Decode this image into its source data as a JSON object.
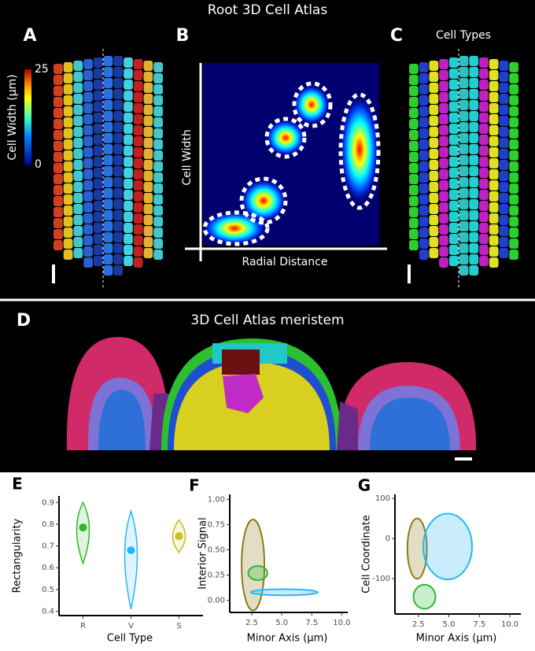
{
  "figure_title": "Root 3D Cell Atlas",
  "panels": {
    "A": {
      "label": "A",
      "colorbar_label": "Cell Width (µm)",
      "colorbar_ticks": [
        0,
        25
      ]
    },
    "B": {
      "label": "B",
      "x_label": "Radial Distance",
      "y_label": "Cell Width"
    },
    "C": {
      "label": "C",
      "title": "Cell Types"
    },
    "D": {
      "label": "D",
      "title": "3D Cell Atlas meristem"
    },
    "E": {
      "label": "E"
    },
    "F": {
      "label": "F"
    },
    "G": {
      "label": "G"
    }
  },
  "chart_data": [
    {
      "type": "violin",
      "x_label": "Cell Type",
      "y_label": "Rectangularity",
      "categories": [
        "R",
        "V",
        "S"
      ],
      "values": [
        0.785,
        0.68,
        0.745
      ],
      "ranges": [
        [
          0.62,
          0.9
        ],
        [
          0.41,
          0.86
        ],
        [
          0.67,
          0.82
        ]
      ],
      "colors": [
        "#2db82d",
        "#29b6f6",
        "#c8c21e"
      ],
      "ylim": [
        0.38,
        0.93
      ],
      "yticks": [
        0.4,
        0.5,
        0.6,
        0.7,
        0.8,
        0.9
      ]
    },
    {
      "type": "scatter",
      "x_label": "Minor Axis (µm)",
      "y_label": "Interior Signal",
      "clusters": [
        {
          "color": "#8b7d1a",
          "cx": 2.6,
          "cy": 0.35,
          "rx": 0.95,
          "ry": 0.45
        },
        {
          "color": "#2db82d",
          "cx": 3.0,
          "cy": 0.27,
          "rx": 0.8,
          "ry": 0.07
        },
        {
          "color": "#29b6f6",
          "cx": 5.2,
          "cy": 0.08,
          "rx": 2.8,
          "ry": 0.03
        }
      ],
      "xlim": [
        0.66,
        10.5
      ],
      "ylim": [
        -0.12,
        1.05
      ],
      "xticks": [
        2.5,
        {
          "value": 5,
          "label": "5.0"
        },
        {
          "value": 7.5,
          "label": "7.5"
        },
        {
          "value": 10,
          "label": "10.0"
        }
      ],
      "yticks": [
        {
          "value": 0,
          "label": "0.00"
        },
        {
          "value": 0.25,
          "label": "0.25"
        },
        {
          "value": 0.5,
          "label": "0.50"
        },
        {
          "value": 0.75,
          "label": "0.75"
        },
        {
          "value": 1,
          "label": "1.00"
        }
      ]
    },
    {
      "type": "scatter",
      "x_label": "Minor Axis (µm)",
      "y_label": "Cell Coordinate",
      "clusters": [
        {
          "color": "#8b7d1a",
          "cx": 2.4,
          "cy": -25,
          "rx": 0.8,
          "ry": 75
        },
        {
          "color": "#2db82d",
          "cx": 3.0,
          "cy": -145,
          "rx": 0.9,
          "ry": 30
        },
        {
          "color": "#29b6f6",
          "cx": 4.9,
          "cy": -20,
          "rx": 2.0,
          "ry": 82
        }
      ],
      "xlim": [
        0.58,
        10.9
      ],
      "ylim": [
        -188,
        110
      ],
      "xticks": [
        2.5,
        {
          "value": 5,
          "label": "5.0"
        },
        {
          "value": 7.5,
          "label": "7.5"
        },
        {
          "value": 10,
          "label": "10.0"
        }
      ],
      "yticks": [
        -100,
        0,
        100
      ]
    }
  ]
}
